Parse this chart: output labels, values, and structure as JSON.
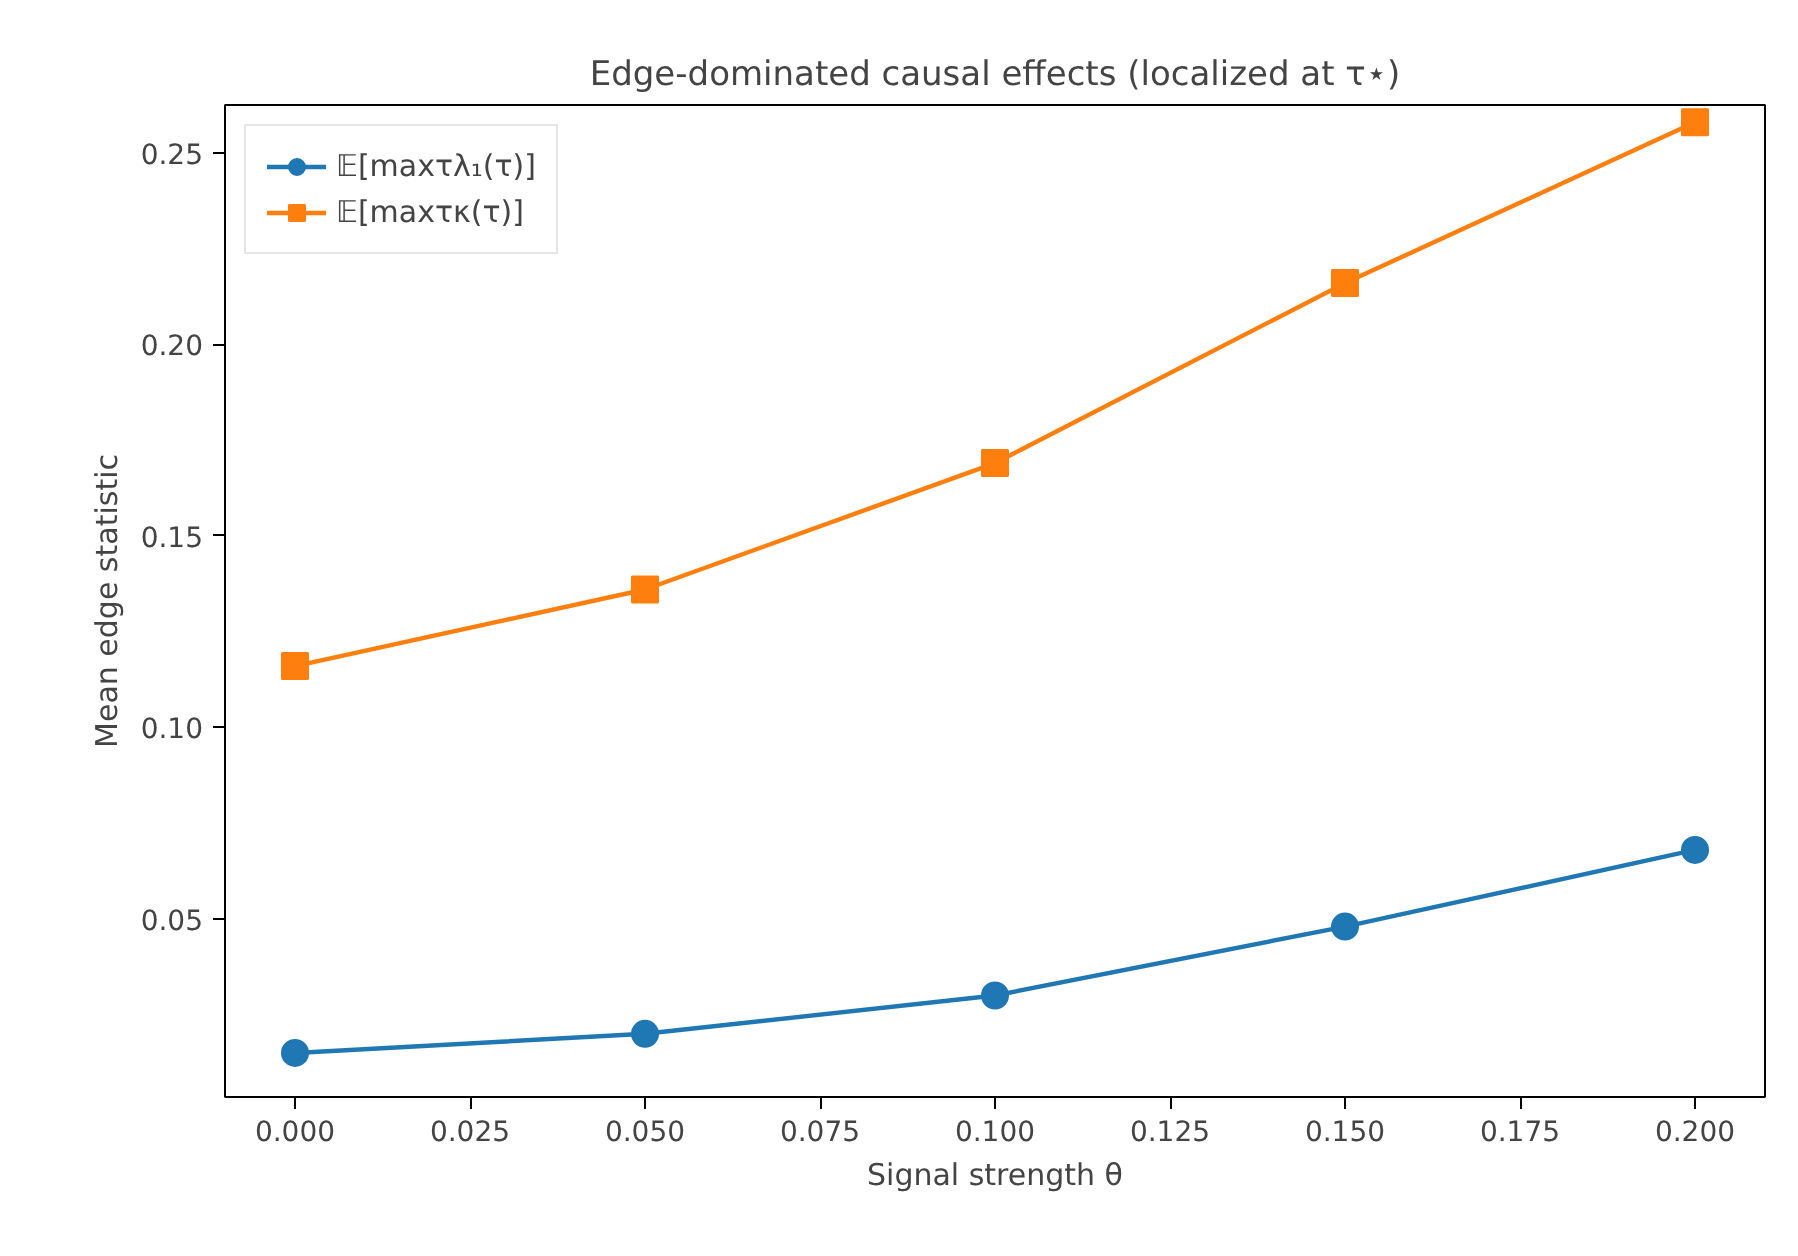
{
  "chart_data": {
    "type": "line",
    "title": "Edge-dominated causal effects (localized at τ⋆)",
    "xlabel": "Signal strength θ",
    "ylabel": "Mean edge statistic",
    "x": [
      0.0,
      0.05,
      0.1,
      0.15,
      0.2
    ],
    "series": [
      {
        "name": "𝔼[maxτλ₁(τ)]",
        "color": "#1f77b4",
        "marker": "circle",
        "values": [
          0.015,
          0.02,
          0.03,
          0.048,
          0.068
        ]
      },
      {
        "name": "𝔼[maxτκ(τ)]",
        "color": "#ff7f0e",
        "marker": "square",
        "values": [
          0.116,
          0.136,
          0.169,
          0.216,
          0.258
        ]
      }
    ],
    "xlim": [
      -0.01,
      0.21
    ],
    "ylim": [
      0.0035,
      0.2625
    ],
    "xticks": [
      {
        "value": 0.0,
        "label": "0.000"
      },
      {
        "value": 0.025,
        "label": "0.025"
      },
      {
        "value": 0.05,
        "label": "0.050"
      },
      {
        "value": 0.075,
        "label": "0.075"
      },
      {
        "value": 0.1,
        "label": "0.100"
      },
      {
        "value": 0.125,
        "label": "0.125"
      },
      {
        "value": 0.15,
        "label": "0.150"
      },
      {
        "value": 0.175,
        "label": "0.175"
      },
      {
        "value": 0.2,
        "label": "0.200"
      }
    ],
    "yticks": [
      0.05,
      {
        "value": 0.1,
        "label": "0.10"
      },
      0.15,
      {
        "value": 0.2,
        "label": "0.20"
      },
      0.25
    ],
    "legend": "top left",
    "grid": false,
    "line_style": "solid"
  }
}
